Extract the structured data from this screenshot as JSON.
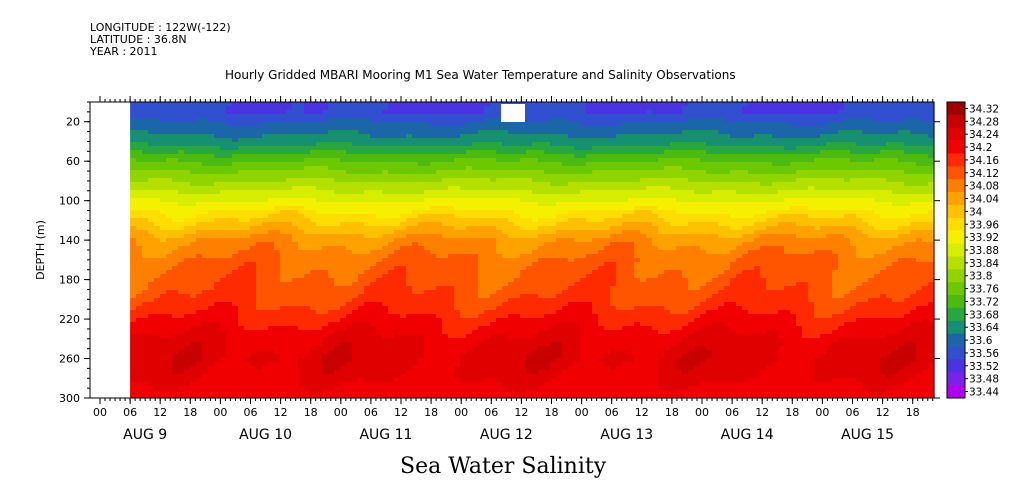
{
  "meta": {
    "longitude": "LONGITUDE : 122W(-122)",
    "latitude": "LATITUDE : 36.8N",
    "year": "YEAR : 2011"
  },
  "title": "Hourly Gridded MBARI Mooring M1 Sea Water Temperature and Salinity Observations",
  "variable_title": "Sea Water Salinity",
  "chart_data": {
    "type": "heatmap",
    "title": "Hourly Gridded MBARI Mooring M1 Sea Water Temperature and Salinity Observations",
    "xlabel": "",
    "ylabel": "DEPTH (m)",
    "colorbar_label": "Sea Water Salinity",
    "y_axis": {
      "inverted": true,
      "range": [
        300,
        0
      ],
      "ticks": [
        20,
        60,
        100,
        140,
        180,
        220,
        260,
        300
      ]
    },
    "x_axis": {
      "hour_ticks": [
        "00",
        "06",
        "12",
        "18",
        "00",
        "06",
        "12",
        "18",
        "00",
        "06",
        "12",
        "18",
        "00",
        "06",
        "12",
        "18",
        "00",
        "06",
        "12",
        "18",
        "00",
        "06",
        "12",
        "18",
        "00",
        "06",
        "12",
        "18"
      ],
      "day_labels": [
        "AUG 9",
        "AUG 10",
        "AUG 11",
        "AUG 12",
        "AUG 13",
        "AUG 14",
        "AUG 15"
      ],
      "data_start": "AUG 9 06:00"
    },
    "colorbar_levels": [
      "34.32",
      "34.28",
      "34.24",
      "34.2",
      "34.16",
      "34.12",
      "34.08",
      "34.04",
      "34",
      "33.96",
      "33.92",
      "33.88",
      "33.84",
      "33.8",
      "33.76",
      "33.72",
      "33.68",
      "33.64",
      "33.6",
      "33.56",
      "33.52",
      "33.48",
      "33.44"
    ],
    "colorbar_colors": [
      "#a00000",
      "#c80000",
      "#e00000",
      "#f00000",
      "#ff2a00",
      "#ff5500",
      "#ff7f00",
      "#ffa200",
      "#ffc000",
      "#ffdd00",
      "#f5f000",
      "#d8ee00",
      "#b6e000",
      "#90d400",
      "#6cc800",
      "#4cba10",
      "#2aa640",
      "#169070",
      "#1b66a8",
      "#3050d0",
      "#4a33e0",
      "#7a22e8",
      "#b000f0"
    ],
    "profile_by_depth": [
      {
        "depth": 10,
        "salinity": 33.56
      },
      {
        "depth": 20,
        "salinity": 33.6
      },
      {
        "depth": 40,
        "salinity": 33.66
      },
      {
        "depth": 60,
        "salinity": 33.76
      },
      {
        "depth": 80,
        "salinity": 33.84
      },
      {
        "depth": 100,
        "salinity": 33.92
      },
      {
        "depth": 120,
        "salinity": 34.0
      },
      {
        "depth": 140,
        "salinity": 34.08
      },
      {
        "depth": 160,
        "salinity": 34.12
      },
      {
        "depth": 180,
        "salinity": 34.14
      },
      {
        "depth": 200,
        "salinity": 34.16
      },
      {
        "depth": 220,
        "salinity": 34.2
      },
      {
        "depth": 240,
        "salinity": 34.24
      },
      {
        "depth": 260,
        "salinity": 34.26
      },
      {
        "depth": 280,
        "salinity": 34.24
      },
      {
        "depth": 300,
        "salinity": 34.22
      }
    ],
    "grid": false,
    "legend_position": "right"
  }
}
